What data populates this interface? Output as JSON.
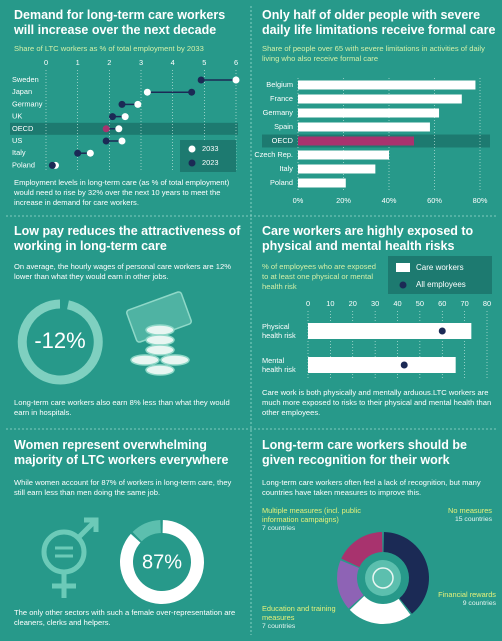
{
  "panels": {
    "wages": {
      "title": "Low pay reduces the attractiveness of working in long-term care",
      "text": "On average, the hourly wages of personal care workers are 12% lower than what they would earn in other jobs.",
      "figure": "-12%",
      "note": "Long-term care workers also earn 8% less than what they would earn in hospitals."
    },
    "women": {
      "title": "Women represent overwhelming majority of LTC workers everywhere",
      "text": "While women account for 87% of workers in long-term care, they still earn less than men doing the same job.",
      "note": "The only other sectors with such a female over-representation are cleaners, clerks and helpers."
    }
  },
  "chart_data": [
    {
      "type": "dumbbell",
      "title": "Demand for long-term care workers will increase over the next decade",
      "subtitle": "Share of LTC workers as % of total employment by 2033",
      "note": "Employment levels in long-term care (as % of total employment) would need to rise by 32% over the next 10 years to meet the increase in demand for care workers.",
      "categories": [
        "Sweden",
        "Japan",
        "Germany",
        "UK",
        "OECD",
        "US",
        "Italy",
        "Poland"
      ],
      "series": [
        {
          "name": "2033",
          "color": "#ffffff",
          "values": [
            6.0,
            3.2,
            2.9,
            2.5,
            2.3,
            2.4,
            1.4,
            0.3
          ]
        },
        {
          "name": "2023",
          "color": "#1b2a55",
          "values": [
            4.9,
            4.6,
            2.4,
            2.1,
            1.9,
            1.9,
            1.0,
            0.2
          ]
        }
      ],
      "highlight": "OECD",
      "highlight_color": "#a8336e",
      "xlim": [
        0,
        6
      ],
      "xticks": [
        0,
        1,
        2,
        3,
        4,
        5,
        6
      ],
      "grid": true
    },
    {
      "type": "hbar",
      "title": "Only half of older people with severe daily life limitations receive formal care",
      "subtitle": "Share of people over 65 with severe limitations in activities of daily living who also receive formal care",
      "categories": [
        "Belgium",
        "France",
        "Germany",
        "Spain",
        "OECD",
        "Czech Rep.",
        "Italy",
        "Poland"
      ],
      "values": [
        78,
        72,
        62,
        58,
        51,
        40,
        34,
        21
      ],
      "color": "#ffffff",
      "highlight": "OECD",
      "highlight_color": "#a8336e",
      "xlim": [
        0,
        80
      ],
      "xticks": [
        {
          "value": 0,
          "label": "0%"
        },
        {
          "value": 20,
          "label": "20%"
        },
        {
          "value": 40,
          "label": "40%"
        },
        {
          "value": 60,
          "label": "60%"
        },
        {
          "value": 80,
          "label": "80%"
        }
      ],
      "grid": true
    },
    {
      "type": "bardot",
      "title": "Care workers are highly exposed to physical and mental health risks",
      "subtitle": "% of employees who are exposed to at least one physical or mental health risk",
      "note": "Care work is both physically and mentally arduous.LTC workers are much more exposed to risks to their physical and mental health than other employees.",
      "categories": [
        "Physical health risk",
        "Mental health risk"
      ],
      "series": [
        {
          "name": "Care workers",
          "color": "#ffffff",
          "values": [
            73,
            66
          ]
        },
        {
          "name": "All employees",
          "color": "#1b2a55",
          "values": [
            60,
            43
          ]
        }
      ],
      "xlim": [
        0,
        80
      ],
      "xticks": [
        0,
        10,
        20,
        30,
        40,
        50,
        60,
        70,
        80
      ],
      "grid": true
    },
    {
      "type": "donut",
      "values": [
        87
      ],
      "value_labels": [
        "87%"
      ],
      "color": "#ffffff",
      "rest_color": "#5cbfae"
    },
    {
      "type": "donut",
      "title": "Long-term care workers should be given recognition for their work",
      "subtitle": "Long-term care workers often feel a lack of recognition, but many countries have taken measures to improve this.",
      "categories": [
        "No measures",
        "Financial rewards",
        "Education and training measures",
        "Multiple measures (incl. public information campaigns)"
      ],
      "values": [
        15,
        9,
        7,
        7
      ],
      "value_labels": [
        "15 countries",
        "9 countries",
        "7 countries",
        "7 countries"
      ],
      "colors": [
        "#1b2a55",
        "#ffffff",
        "#8e63b5",
        "#a8336e"
      ]
    }
  ]
}
